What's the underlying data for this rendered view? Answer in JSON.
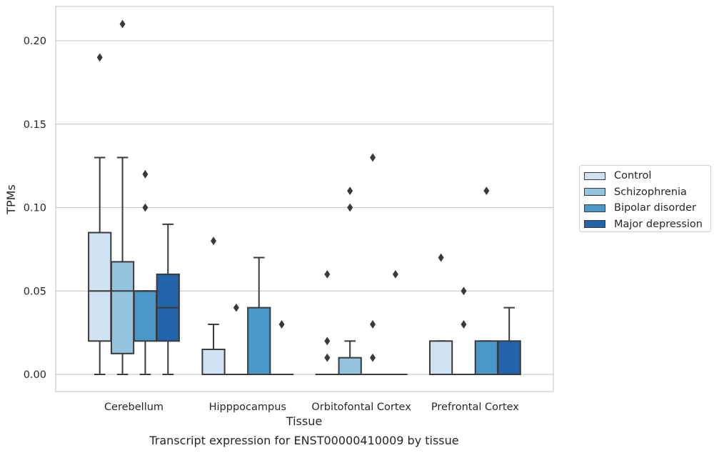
{
  "chart_data": {
    "type": "box",
    "title": "",
    "caption": "Transcript expression for ENST00000410009 by tissue",
    "xlabel": "Tissue",
    "ylabel": "TPMs",
    "ylim": [
      -0.01,
      0.22
    ],
    "yticks": [
      "0.00",
      "0.05",
      "0.10",
      "0.15",
      "0.20"
    ],
    "ytick_values": [
      0,
      0.05,
      0.1,
      0.15,
      0.2
    ],
    "grid": "horizontal",
    "legend_position": "right",
    "categories": [
      "Cerebellum",
      "Hipppocampus",
      "Orbitofontal Cortex",
      "Prefrontal Cortex"
    ],
    "series": [
      {
        "name": "Control",
        "color": "#d0e1f2",
        "boxes": [
          {
            "q1": 0.02,
            "median": 0.05,
            "q3": 0.085,
            "whisker_low": 0.0,
            "whisker_high": 0.13,
            "outliers": [
              0.19
            ]
          },
          {
            "q1": 0.0,
            "median": 0.0,
            "q3": 0.015,
            "whisker_low": 0.0,
            "whisker_high": 0.03,
            "outliers": [
              0.08
            ]
          },
          {
            "q1": 0.0,
            "median": 0.0,
            "q3": 0.0,
            "whisker_low": 0.0,
            "whisker_high": 0.0,
            "outliers": [
              0.06,
              0.02,
              0.01
            ]
          },
          {
            "q1": 0.0,
            "median": 0.0,
            "q3": 0.02,
            "whisker_low": 0.0,
            "whisker_high": 0.02,
            "outliers": [
              0.07
            ]
          }
        ]
      },
      {
        "name": "Schizophrenia",
        "color": "#94c4df",
        "boxes": [
          {
            "q1": 0.0125,
            "median": 0.05,
            "q3": 0.0675,
            "whisker_low": 0.0,
            "whisker_high": 0.13,
            "outliers": [
              0.21
            ]
          },
          {
            "q1": 0.0,
            "median": 0.0,
            "q3": 0.0,
            "whisker_low": 0.0,
            "whisker_high": 0.0,
            "outliers": [
              0.04
            ]
          },
          {
            "q1": 0.0,
            "median": 0.0,
            "q3": 0.01,
            "whisker_low": 0.0,
            "whisker_high": 0.02,
            "outliers": [
              0.11,
              0.1
            ]
          },
          {
            "q1": 0.0,
            "median": 0.0,
            "q3": 0.0,
            "whisker_low": 0.0,
            "whisker_high": 0.0,
            "outliers": [
              0.05,
              0.03
            ]
          }
        ]
      },
      {
        "name": "Bipolar disorder",
        "color": "#4a98c9",
        "boxes": [
          {
            "q1": 0.02,
            "median": 0.05,
            "q3": 0.05,
            "whisker_low": 0.0,
            "whisker_high": 0.05,
            "outliers": [
              0.12,
              0.1
            ]
          },
          {
            "q1": 0.0,
            "median": 0.0,
            "q3": 0.04,
            "whisker_low": 0.0,
            "whisker_high": 0.07,
            "outliers": []
          },
          {
            "q1": 0.0,
            "median": 0.0,
            "q3": 0.0,
            "whisker_low": 0.0,
            "whisker_high": 0.0,
            "outliers": [
              0.13,
              0.03,
              0.01
            ]
          },
          {
            "q1": 0.0,
            "median": 0.0,
            "q3": 0.02,
            "whisker_low": 0.0,
            "whisker_high": 0.02,
            "outliers": [
              0.11
            ]
          }
        ]
      },
      {
        "name": "Major depression",
        "color": "#2164ab",
        "boxes": [
          {
            "q1": 0.02,
            "median": 0.04,
            "q3": 0.06,
            "whisker_low": 0.0,
            "whisker_high": 0.09,
            "outliers": []
          },
          {
            "q1": 0.0,
            "median": 0.0,
            "q3": 0.0,
            "whisker_low": 0.0,
            "whisker_high": 0.0,
            "outliers": [
              0.03
            ]
          },
          {
            "q1": 0.0,
            "median": 0.0,
            "q3": 0.0,
            "whisker_low": 0.0,
            "whisker_high": 0.0,
            "outliers": [
              0.06
            ]
          },
          {
            "q1": 0.0,
            "median": 0.0,
            "q3": 0.02,
            "whisker_low": 0.0,
            "whisker_high": 0.04,
            "outliers": []
          }
        ]
      }
    ]
  }
}
